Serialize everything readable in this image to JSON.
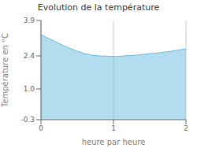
{
  "chart_data": {
    "type": "area",
    "title": "Evolution de la température",
    "x_label": "heure par heure",
    "y_label": "Température en °C",
    "x": [
      0,
      0.1,
      0.2,
      0.3,
      0.4,
      0.5,
      0.6,
      0.7,
      0.8,
      0.9,
      1.0,
      1.05,
      1.1,
      1.2,
      1.3,
      1.4,
      1.5,
      1.6,
      1.7,
      1.8,
      1.9,
      2.0
    ],
    "values": [
      3.3,
      3.15,
      3.0,
      2.85,
      2.72,
      2.6,
      2.5,
      2.43,
      2.4,
      2.39,
      2.38,
      2.38,
      2.39,
      2.41,
      2.43,
      2.46,
      2.49,
      2.52,
      2.56,
      2.6,
      2.65,
      2.7
    ],
    "color": "#66bbdd",
    "xlim": [
      0,
      2
    ],
    "ylim": [
      -0.3,
      3.9
    ],
    "xticks": [
      0,
      1,
      2
    ],
    "yticks": [
      -0.3,
      {
        "value": 1.0,
        "label": "1.0"
      },
      2.4,
      3.9
    ],
    "grid": "x"
  }
}
